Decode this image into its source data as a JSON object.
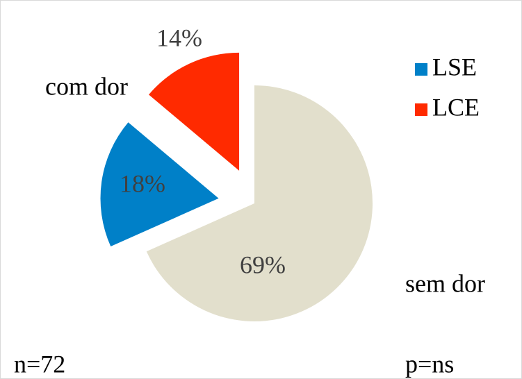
{
  "chart_data": {
    "type": "pie",
    "categories": [
      null,
      "LSE",
      "LCE"
    ],
    "values": [
      69,
      18,
      14
    ],
    "value_labels": [
      "69%",
      "18%",
      "14%"
    ],
    "colors": [
      "#e2dfcc",
      "#0080c8",
      "#ff2a00"
    ],
    "legend": "right",
    "annotations": [
      "com dor",
      "sem dor",
      "n=72",
      "p=ns"
    ]
  }
}
